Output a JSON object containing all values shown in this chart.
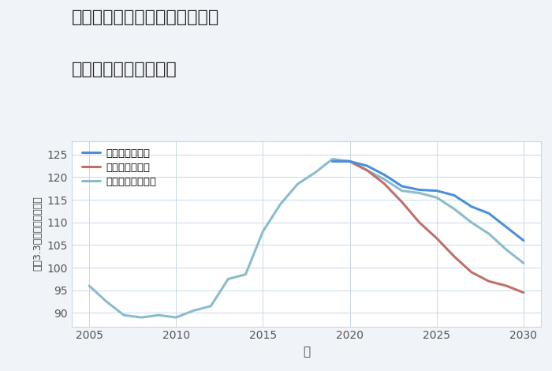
{
  "title_line1": "愛知県名古屋市昭和区広瀬町の",
  "title_line2": "中古戸建ての価格推移",
  "xlabel": "年",
  "ylabel": "坪（3.3㎡）単価（万円）",
  "background_color": "#f0f4f8",
  "plot_bg_color": "#ffffff",
  "xlim": [
    2004,
    2031
  ],
  "ylim": [
    87,
    128
  ],
  "yticks": [
    90,
    95,
    100,
    105,
    110,
    115,
    120,
    125
  ],
  "xticks": [
    2005,
    2010,
    2015,
    2020,
    2025,
    2030
  ],
  "series": {
    "good": {
      "label": "グッドシナリオ",
      "color": "#4a90d9",
      "linewidth": 2.2,
      "years": [
        2019,
        2020,
        2021,
        2022,
        2023,
        2024,
        2025,
        2026,
        2027,
        2028,
        2029,
        2030
      ],
      "values": [
        123.5,
        123.5,
        122.5,
        120.5,
        118.0,
        117.2,
        117.0,
        116.0,
        113.5,
        112.0,
        109.0,
        106.0
      ]
    },
    "bad": {
      "label": "バッドシナリオ",
      "color": "#c0706a",
      "linewidth": 2.2,
      "years": [
        2019,
        2020,
        2021,
        2022,
        2023,
        2024,
        2025,
        2026,
        2027,
        2028,
        2029,
        2030
      ],
      "values": [
        123.5,
        123.5,
        121.5,
        118.5,
        114.5,
        110.0,
        106.5,
        102.5,
        99.0,
        97.0,
        96.0,
        94.5
      ]
    },
    "normal": {
      "label": "ノーマルシナリオ",
      "color": "#8bbccc",
      "linewidth": 2.2,
      "years": [
        2005,
        2006,
        2007,
        2008,
        2009,
        2010,
        2011,
        2012,
        2013,
        2014,
        2015,
        2016,
        2017,
        2018,
        2019,
        2020,
        2021,
        2022,
        2023,
        2024,
        2025,
        2026,
        2027,
        2028,
        2029,
        2030
      ],
      "values": [
        96.0,
        92.5,
        89.5,
        89.0,
        89.5,
        89.0,
        90.5,
        91.5,
        97.5,
        98.5,
        108.0,
        114.0,
        118.5,
        121.0,
        124.0,
        123.5,
        121.5,
        119.5,
        117.0,
        116.5,
        115.5,
        113.0,
        110.0,
        107.5,
        104.0,
        101.0
      ]
    }
  }
}
